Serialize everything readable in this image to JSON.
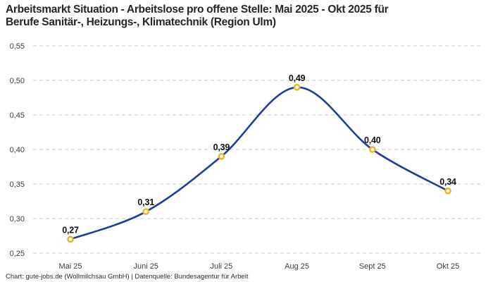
{
  "title": {
    "line1": "Arbeitsmarkt Situation - Arbeitslose pro offene Stelle: Mai 2025 - Okt 2025 für",
    "line2": "Berufe Sanitär-, Heizungs-, Klimatechnik (Region Ulm)"
  },
  "footer": {
    "text": "Chart: gute-jobs.de (Wollmilchsau GmbH) | Datenquelle: Bundesagentur für Arbeit"
  },
  "chart_data": {
    "type": "line",
    "title": "Arbeitsmarkt Situation - Arbeitslose pro offene Stelle: Mai 2025 - Okt 2025 für Berufe Sanitär-, Heizungs-, Klimatechnik (Region Ulm)",
    "categories": [
      "Mai 25",
      "Juni 25",
      "Juli 25",
      "Aug 25",
      "Sept 25",
      "Okt 25"
    ],
    "values": [
      0.27,
      0.31,
      0.39,
      0.49,
      0.4,
      0.34
    ],
    "value_labels": [
      "0,27",
      "0,31",
      "0,39",
      "0,49",
      "0,40",
      "0,34"
    ],
    "y_ticks": [
      0.25,
      0.3,
      0.35,
      0.4,
      0.45,
      0.5,
      0.55
    ],
    "y_tick_labels": [
      "0,25",
      "0,30",
      "0,35",
      "0,40",
      "0,45",
      "0,50",
      "0,55"
    ],
    "ylim": [
      0.25,
      0.55
    ],
    "xlabel": "",
    "ylabel": "",
    "grid": "horizontal-dashed",
    "legend": "none",
    "smooth": true,
    "line_color": "#1f3d9c",
    "marker_stroke_color": "#f1b40f",
    "marker_fill_color": "#ffffff",
    "grid_color": "#c8c8c8",
    "tick_label_color": "#3d3d3d",
    "data_label_color": "#111111"
  }
}
